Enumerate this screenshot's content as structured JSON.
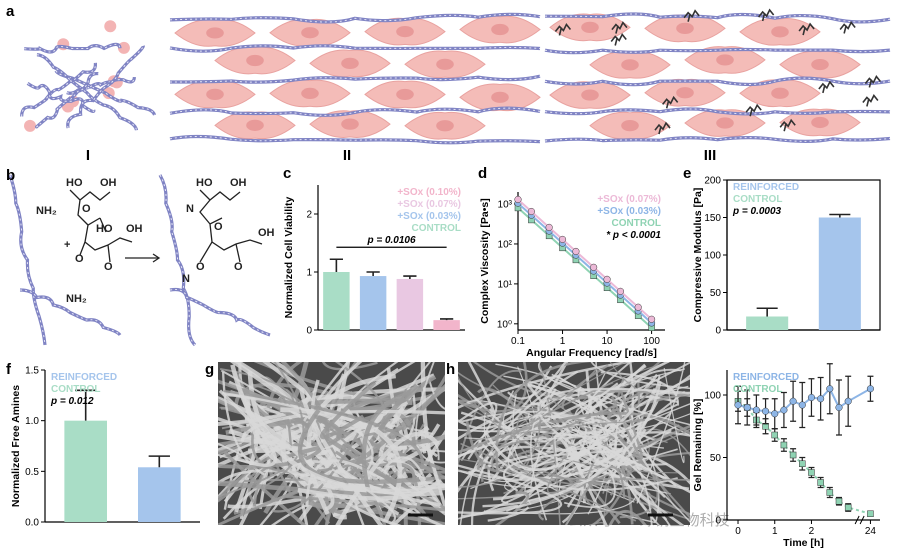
{
  "panel_labels": [
    "a",
    "b",
    "c",
    "d",
    "e",
    "f",
    "g",
    "h",
    "i"
  ],
  "schematic_labels": [
    "I",
    "II",
    "III"
  ],
  "chem_labels": [
    "HO",
    "OH",
    "O",
    "HO",
    "OH",
    "O",
    "O",
    "+",
    "NH₂",
    "NH₂",
    "HO",
    "OH",
    "N",
    "O",
    "OH",
    "O",
    "O",
    "N"
  ],
  "watermark": "公众号·GK绿钥生物科技",
  "chart_data": [
    {
      "type": "bar",
      "ylabel": "Normalized Cell Viability",
      "ylim": [
        0,
        2.5
      ],
      "yticks": [
        0,
        1,
        2
      ],
      "legend": "upper right",
      "annotation": "p = 0.0106",
      "series": [
        {
          "name": "CONTROL",
          "color": "#a9ddc6",
          "values": [
            1.0
          ],
          "errors": [
            0.22
          ]
        },
        {
          "name": "+SOx (0.03%)",
          "color": "#a5c5ec",
          "values": [
            0.93
          ],
          "errors": [
            0.07
          ]
        },
        {
          "name": "+SOx (0.07%)",
          "color": "#e9c8e2",
          "values": [
            0.88
          ],
          "errors": [
            0.05
          ]
        },
        {
          "name": "+SOx (0.10%)",
          "color": "#f2b5cb",
          "values": [
            0.17
          ],
          "errors": [
            0.02
          ]
        }
      ]
    },
    {
      "type": "line",
      "xlabel": "Angular Frequency [rad/s]",
      "ylabel": "Complex Viscosity [Pa•s]",
      "xlog": true,
      "ylog": true,
      "xlim": [
        0.1,
        200
      ],
      "xticks": [
        0.1,
        1,
        10,
        100
      ],
      "ylim": [
        0.7,
        2000
      ],
      "yticks": [
        {
          "value": 1,
          "label": "10⁰"
        },
        {
          "value": 10,
          "label": "10¹"
        },
        {
          "value": 100,
          "label": "10²"
        },
        {
          "value": 1000,
          "label": "10³"
        }
      ],
      "legend": "upper right",
      "annotation": "* p < 0.0001",
      "x": [
        0.1,
        0.2,
        0.5,
        1,
        2,
        5,
        10,
        20,
        50,
        100
      ],
      "series": [
        {
          "name": "CONTROL",
          "color": "#8fd3b3",
          "values": [
            800,
            400,
            160,
            80,
            40,
            16,
            8,
            4,
            1.6,
            0.8
          ]
        },
        {
          "name": "+SOx (0.03%)",
          "color": "#8db5e6",
          "values": [
            1050,
            525,
            210,
            105,
            52.5,
            21,
            10.5,
            5.25,
            2.1,
            1.05
          ]
        },
        {
          "name": "+SOx (0.07%)",
          "color": "#ecb9d7",
          "values": [
            1300,
            650,
            260,
            130,
            65,
            26,
            13,
            6.5,
            2.6,
            1.3
          ]
        }
      ]
    },
    {
      "type": "bar",
      "ylabel": "Compressive Modulus [Pa]",
      "ylim": [
        0,
        200
      ],
      "yticks": [
        0,
        50,
        100,
        150,
        200
      ],
      "legend": "upper left",
      "annotation": "p = 0.0003",
      "series": [
        {
          "name": "CONTROL",
          "color": "#a9ddc6",
          "values": [
            18
          ],
          "errors": [
            11
          ]
        },
        {
          "name": "REINFORCED",
          "color": "#a5c5ec",
          "values": [
            150
          ],
          "errors": [
            4
          ]
        }
      ]
    },
    {
      "type": "bar",
      "ylabel": "Normalized Free Amines",
      "ylim": [
        0,
        1.5
      ],
      "yticks": [
        {
          "value": 0,
          "label": "0.0"
        },
        {
          "value": 0.5,
          "label": "0.5"
        },
        {
          "value": 1,
          "label": "1.0"
        },
        {
          "value": 1.5,
          "label": "1.5"
        }
      ],
      "legend": "upper left",
      "annotation": "p = 0.012",
      "series": [
        {
          "name": "CONTROL",
          "color": "#a9ddc6",
          "values": [
            1.0
          ],
          "errors": [
            0.3
          ]
        },
        {
          "name": "REINFORCED",
          "color": "#a5c5ec",
          "values": [
            0.54
          ],
          "errors": [
            0.11
          ]
        }
      ]
    },
    {
      "type": "line",
      "xlabel": "Time [h]",
      "ylabel": "Gel Remaining [%]",
      "xlim": [
        -0.3,
        24.5
      ],
      "axis_break": [
        3.2,
        23.7
      ],
      "xticks": [
        0,
        1,
        2,
        24
      ],
      "ylim": [
        0,
        120
      ],
      "yticks": [
        0,
        50,
        100
      ],
      "legend": "upper left",
      "x": [
        0,
        0.25,
        0.5,
        0.75,
        1,
        1.25,
        1.5,
        1.75,
        2,
        2.25,
        2.5,
        2.75,
        3,
        24
      ],
      "series": [
        {
          "name": "CONTROL",
          "color": "#8fd3b3",
          "values": [
            95,
            90,
            80,
            75,
            68,
            60,
            52,
            45,
            38,
            30,
            22,
            15,
            10,
            5
          ],
          "errors": [
            8,
            7,
            6,
            6,
            5,
            5,
            5,
            5,
            4,
            4,
            4,
            3,
            3,
            2
          ]
        },
        {
          "name": "REINFORCED",
          "color": "#8db5e6",
          "values": [
            92,
            90,
            88,
            87,
            85,
            88,
            95,
            92,
            98,
            97,
            105,
            90,
            95,
            105
          ],
          "errors": [
            15,
            14,
            12,
            10,
            12,
            14,
            16,
            18,
            15,
            17,
            20,
            22,
            20,
            10
          ]
        }
      ]
    }
  ]
}
